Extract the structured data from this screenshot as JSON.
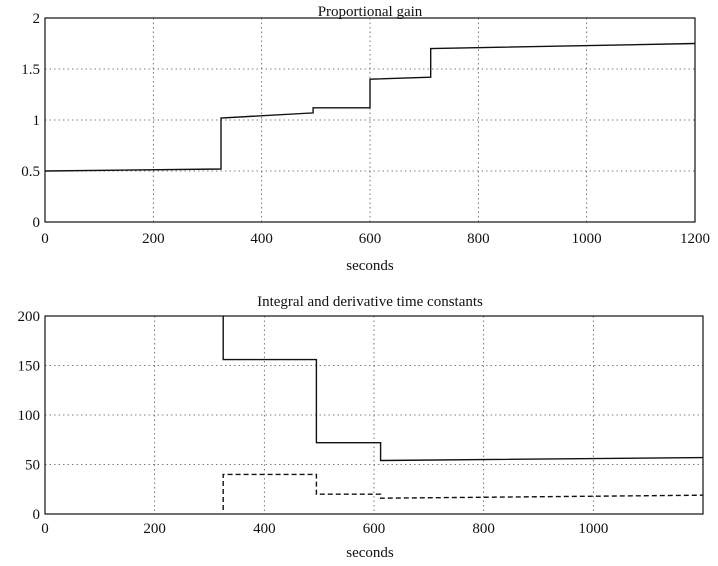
{
  "chart_data": [
    {
      "type": "line",
      "title": "Proportional gain",
      "xlabel": "seconds",
      "ylabel": "",
      "xlim": [
        0,
        1200
      ],
      "ylim": [
        0,
        2
      ],
      "xticks": [
        0,
        200,
        400,
        600,
        800,
        1000,
        1200
      ],
      "xtick_labels": [
        "0",
        "200",
        "400",
        "600",
        "800",
        "1000",
        "1200"
      ],
      "yticks": [
        0,
        0.5,
        1,
        1.5,
        2
      ],
      "ytick_labels": [
        "0",
        "0.5",
        "1",
        "1.5",
        "2"
      ],
      "grid": true,
      "series": [
        {
          "style": "solid",
          "step": true,
          "x": [
            0,
            325,
            325,
            495,
            495,
            600,
            600,
            712,
            712,
            1200
          ],
          "y": [
            0.5,
            0.52,
            1.02,
            1.07,
            1.12,
            1.12,
            1.4,
            1.42,
            1.7,
            1.75
          ]
        }
      ]
    },
    {
      "type": "line",
      "title": "Integral and derivative time constants",
      "xlabel": "seconds",
      "ylabel": "",
      "xlim": [
        0,
        1200
      ],
      "ylim": [
        0,
        200
      ],
      "xticks": [
        0,
        200,
        400,
        600,
        800,
        1000
      ],
      "xtick_labels": [
        "0",
        "200",
        "400",
        "600",
        "800",
        "1000"
      ],
      "yticks": [
        0,
        50,
        100,
        150,
        200
      ],
      "ytick_labels": [
        "0",
        "50",
        "100",
        "150",
        "200"
      ],
      "grid": true,
      "series": [
        {
          "style": "solid",
          "step": true,
          "x": [
            325,
            325,
            495,
            495,
            612,
            612,
            1200
          ],
          "y": [
            200,
            156,
            156,
            72,
            72,
            54,
            57
          ]
        },
        {
          "style": "dashed",
          "step": true,
          "x": [
            325,
            325,
            495,
            495,
            612,
            612,
            1200
          ],
          "y": [
            4,
            40,
            40,
            20,
            20,
            16,
            19
          ]
        }
      ]
    }
  ]
}
